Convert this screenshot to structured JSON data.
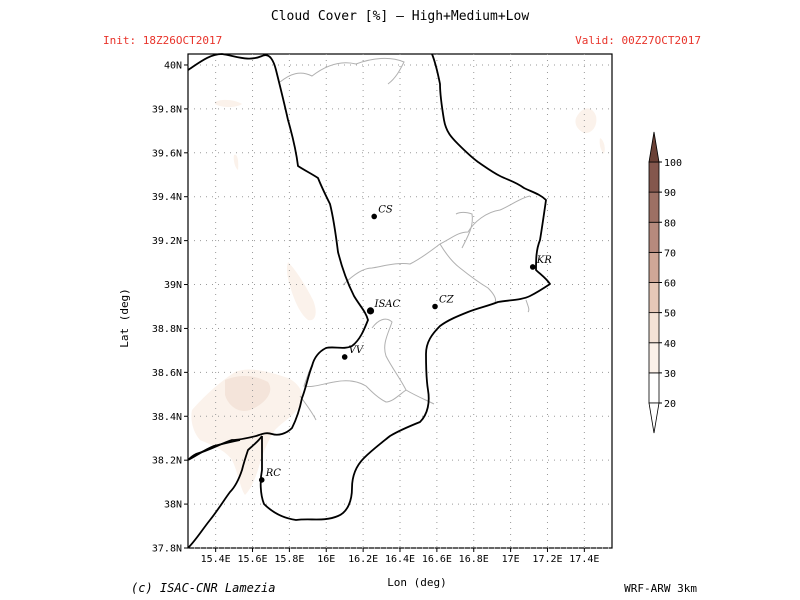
{
  "header": {
    "title": "Cloud Cover [%] — High+Medium+Low",
    "init": "Init: 18Z26OCT2017",
    "valid": "Valid: 00Z27OCT2017"
  },
  "axes": {
    "xlabel": "Lon (deg)",
    "ylabel": "Lat (deg)",
    "x_ticks": [
      "15.4E",
      "15.6E",
      "15.8E",
      "16E",
      "16.2E",
      "16.4E",
      "16.6E",
      "16.8E",
      "17E",
      "17.2E",
      "17.4E"
    ],
    "x_values": [
      15.4,
      15.6,
      15.8,
      16.0,
      16.2,
      16.4,
      16.6,
      16.8,
      17.0,
      17.2,
      17.4
    ],
    "y_ticks": [
      "40N",
      "39.8N",
      "39.6N",
      "39.4N",
      "39.2N",
      "39N",
      "38.8N",
      "38.6N",
      "38.4N",
      "38.2N",
      "38N",
      "37.8N"
    ],
    "y_values": [
      40.0,
      39.8,
      39.6,
      39.4,
      39.2,
      39.0,
      38.8,
      38.6,
      38.4,
      38.2,
      38.0,
      37.8
    ],
    "xlim": [
      15.25,
      17.55
    ],
    "ylim": [
      37.8,
      40.05
    ]
  },
  "cities": [
    {
      "name": "CS",
      "lon": 16.26,
      "lat": 39.31,
      "highlight": false
    },
    {
      "name": "KR",
      "lon": 17.12,
      "lat": 39.08,
      "highlight": false
    },
    {
      "name": "ISAC",
      "lon": 16.24,
      "lat": 38.88,
      "highlight": true
    },
    {
      "name": "CZ",
      "lon": 16.59,
      "lat": 38.9,
      "highlight": false
    },
    {
      "name": "VV",
      "lon": 16.1,
      "lat": 38.67,
      "highlight": false
    },
    {
      "name": "RC",
      "lon": 15.65,
      "lat": 38.11,
      "highlight": false
    }
  ],
  "colorbar": {
    "levels": [
      "20",
      "30",
      "40",
      "50",
      "60",
      "70",
      "80",
      "90",
      "100"
    ],
    "colors": [
      "#ffffff",
      "#fbf1e9",
      "#f3e2d6",
      "#e6c8b8",
      "#cfa797",
      "#b68a7d",
      "#9d7064",
      "#84574d",
      "#6b4136"
    ]
  },
  "footer": {
    "credit": "(c) ISAC-CNR Lamezia",
    "model": "WRF-ARW 3km"
  },
  "colors": {
    "accent_red": "#e8332a",
    "coast": "#000000",
    "borders": "#b0b0b0",
    "grid": "#9a9a9a"
  }
}
